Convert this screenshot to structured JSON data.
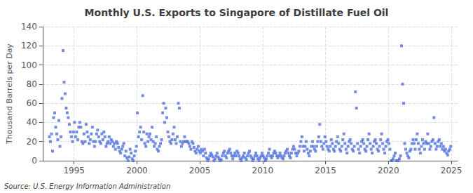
{
  "chart_data": {
    "type": "scatter",
    "title": "Monthly U.S. Exports to Singapore of Distillate Fuel Oil",
    "ylabel": "Thousand Barrels per Day",
    "annotation": "Source: U.S. Energy Information Administration",
    "marker": "square",
    "grid": true,
    "xlim": [
      1992.5,
      2025.5
    ],
    "xticks": [
      1995,
      2000,
      2005,
      2010,
      2015,
      2020,
      2025
    ],
    "ylim": [
      0,
      140
    ],
    "yticks": [
      0,
      20,
      40,
      60,
      80,
      100,
      120,
      140
    ],
    "x": [
      1993.0416666666667,
      1993.125,
      1993.2083333333333,
      1993.2916666666667,
      1993.375,
      1993.4583333333333,
      1993.5416666666667,
      1993.625,
      1993.7083333333333,
      1993.7916666666667,
      1993.875,
      1993.9583333333333,
      1994.0416666666667,
      1994.125,
      1994.2083333333333,
      1994.2916666666667,
      1994.375,
      1994.4583333333333,
      1994.5416666666667,
      1994.625,
      1994.7083333333333,
      1994.7916666666667,
      1994.875,
      1994.9583333333333,
      1995.0416666666667,
      1995.125,
      1995.2083333333333,
      1995.2916666666667,
      1995.375,
      1995.4583333333333,
      1995.5416666666667,
      1995.625,
      1995.7083333333333,
      1995.7916666666667,
      1995.875,
      1995.9583333333333,
      1996.0416666666667,
      1996.125,
      1996.2083333333333,
      1996.2916666666667,
      1996.375,
      1996.4583333333333,
      1996.5416666666667,
      1996.625,
      1996.7083333333333,
      1996.7916666666667,
      1996.875,
      1996.9583333333333,
      1997.0416666666667,
      1997.125,
      1997.2083333333333,
      1997.2916666666667,
      1997.375,
      1997.4583333333333,
      1997.5416666666667,
      1997.625,
      1997.7083333333333,
      1997.7916666666667,
      1997.875,
      1997.9583333333333,
      1998.0416666666667,
      1998.125,
      1998.2083333333333,
      1998.2916666666667,
      1998.375,
      1998.4583333333333,
      1998.5416666666667,
      1998.625,
      1998.7083333333333,
      1998.7916666666667,
      1998.875,
      1998.9583333333333,
      1999.0416666666667,
      1999.125,
      1999.2083333333333,
      1999.2916666666667,
      1999.375,
      1999.4583333333333,
      1999.5416666666667,
      1999.625,
      1999.7083333333333,
      1999.7916666666667,
      1999.875,
      1999.9583333333333,
      2000.0416666666667,
      2000.125,
      2000.2083333333333,
      2000.2916666666667,
      2000.375,
      2000.4583333333333,
      2000.5416666666667,
      2000.625,
      2000.7083333333333,
      2000.7916666666667,
      2000.875,
      2000.9583333333333,
      2001.0416666666667,
      2001.125,
      2001.2083333333333,
      2001.2916666666667,
      2001.375,
      2001.4583333333333,
      2001.5416666666667,
      2001.625,
      2001.7083333333333,
      2001.7916666666667,
      2001.875,
      2001.9583333333333,
      2002.0416666666667,
      2002.125,
      2002.2083333333333,
      2002.2916666666667,
      2002.375,
      2002.4583333333333,
      2002.5416666666667,
      2002.625,
      2002.7083333333333,
      2002.7916666666667,
      2002.875,
      2002.9583333333333,
      2003.0416666666667,
      2003.125,
      2003.2083333333333,
      2003.2916666666667,
      2003.375,
      2003.4583333333333,
      2003.5416666666667,
      2003.625,
      2003.7083333333333,
      2003.7916666666667,
      2003.875,
      2003.9583333333333,
      2004.0416666666667,
      2004.125,
      2004.2083333333333,
      2004.2916666666667,
      2004.375,
      2004.4583333333333,
      2004.5416666666667,
      2004.625,
      2004.7083333333333,
      2004.7916666666667,
      2004.875,
      2004.9583333333333,
      2005.0416666666667,
      2005.125,
      2005.2083333333333,
      2005.2916666666667,
      2005.375,
      2005.4583333333333,
      2005.5416666666667,
      2005.625,
      2005.7083333333333,
      2005.7916666666667,
      2005.875,
      2005.9583333333333,
      2006.0416666666667,
      2006.125,
      2006.2083333333333,
      2006.2916666666667,
      2006.375,
      2006.4583333333333,
      2006.5416666666667,
      2006.625,
      2006.7083333333333,
      2006.7916666666667,
      2006.875,
      2006.9583333333333,
      2007.0416666666667,
      2007.125,
      2007.2083333333333,
      2007.2916666666667,
      2007.375,
      2007.4583333333333,
      2007.5416666666667,
      2007.625,
      2007.7083333333333,
      2007.7916666666667,
      2007.875,
      2007.9583333333333,
      2008.0416666666667,
      2008.125,
      2008.2083333333333,
      2008.2916666666667,
      2008.375,
      2008.4583333333333,
      2008.5416666666667,
      2008.625,
      2008.7083333333333,
      2008.7916666666667,
      2008.875,
      2008.9583333333333,
      2009.0416666666667,
      2009.125,
      2009.2083333333333,
      2009.2916666666667,
      2009.375,
      2009.4583333333333,
      2009.5416666666667,
      2009.625,
      2009.7083333333333,
      2009.7916666666667,
      2009.875,
      2009.9583333333333,
      2010.0416666666667,
      2010.125,
      2010.2083333333333,
      2010.2916666666667,
      2010.375,
      2010.4583333333333,
      2010.5416666666667,
      2010.625,
      2010.7083333333333,
      2010.7916666666667,
      2010.875,
      2010.9583333333333,
      2011.0416666666667,
      2011.125,
      2011.2083333333333,
      2011.2916666666667,
      2011.375,
      2011.4583333333333,
      2011.5416666666667,
      2011.625,
      2011.7083333333333,
      2011.7916666666667,
      2011.875,
      2011.9583333333333,
      2012.0416666666667,
      2012.125,
      2012.2083333333333,
      2012.2916666666667,
      2012.375,
      2012.4583333333333,
      2012.5416666666667,
      2012.625,
      2012.7083333333333,
      2012.7916666666667,
      2012.875,
      2012.9583333333333,
      2013.0416666666667,
      2013.125,
      2013.2083333333333,
      2013.2916666666667,
      2013.375,
      2013.4583333333333,
      2013.5416666666667,
      2013.625,
      2013.7083333333333,
      2013.7916666666667,
      2013.875,
      2013.9583333333333,
      2014.0416666666667,
      2014.125,
      2014.2083333333333,
      2014.2916666666667,
      2014.375,
      2014.4583333333333,
      2014.5416666666667,
      2014.625,
      2014.7083333333333,
      2014.7916666666667,
      2014.875,
      2014.9583333333333,
      2015.0416666666667,
      2015.125,
      2015.2083333333333,
      2015.2916666666667,
      2015.375,
      2015.4583333333333,
      2015.5416666666667,
      2015.625,
      2015.7083333333333,
      2015.7916666666667,
      2015.875,
      2015.9583333333333,
      2016.0416666666667,
      2016.125,
      2016.2083333333333,
      2016.2916666666667,
      2016.375,
      2016.4583333333333,
      2016.5416666666667,
      2016.625,
      2016.7083333333333,
      2016.7916666666667,
      2016.875,
      2016.9583333333333,
      2017.0416666666667,
      2017.125,
      2017.2083333333333,
      2017.2916666666667,
      2017.375,
      2017.4583333333333,
      2017.5416666666667,
      2017.625,
      2017.7083333333333,
      2017.7916666666667,
      2017.875,
      2017.9583333333333,
      2018.0416666666667,
      2018.125,
      2018.2083333333333,
      2018.2916666666667,
      2018.375,
      2018.4583333333333,
      2018.5416666666667,
      2018.625,
      2018.7083333333333,
      2018.7916666666667,
      2018.875,
      2018.9583333333333,
      2019.0416666666667,
      2019.125,
      2019.2083333333333,
      2019.2916666666667,
      2019.375,
      2019.4583333333333,
      2019.5416666666667,
      2019.625,
      2019.7083333333333,
      2019.7916666666667,
      2019.875,
      2019.9583333333333,
      2020.0416666666667,
      2020.125,
      2020.2083333333333,
      2020.2916666666667,
      2020.375,
      2020.4583333333333,
      2020.5416666666667,
      2020.625,
      2020.7083333333333,
      2020.7916666666667,
      2020.875,
      2020.9583333333333,
      2021.0416666666667,
      2021.125,
      2021.2083333333333,
      2021.2916666666667,
      2021.375,
      2021.4583333333333,
      2021.5416666666667,
      2021.625,
      2021.7083333333333,
      2021.7916666666667,
      2021.875,
      2021.9583333333333,
      2022.0416666666667,
      2022.125,
      2022.2083333333333,
      2022.2916666666667,
      2022.375,
      2022.4583333333333,
      2022.5416666666667,
      2022.625,
      2022.7083333333333,
      2022.7916666666667,
      2022.875,
      2022.9583333333333,
      2023.0416666666667,
      2023.125,
      2023.2083333333333,
      2023.2916666666667,
      2023.375,
      2023.4583333333333,
      2023.5416666666667,
      2023.625,
      2023.7083333333333,
      2023.7916666666667,
      2023.875,
      2023.9583333333333,
      2024.0416666666667,
      2024.125,
      2024.2083333333333,
      2024.2916666666667,
      2024.375,
      2024.4583333333333,
      2024.5416666666667,
      2024.625,
      2024.7083333333333,
      2024.7916666666667,
      2024.875,
      2024.9583333333333
    ],
    "values": [
      25,
      20,
      28,
      10,
      45,
      50,
      35,
      28,
      22,
      42,
      15,
      25,
      65,
      115,
      82,
      70,
      55,
      50,
      45,
      38,
      30,
      25,
      20,
      30,
      40,
      25,
      30,
      22,
      35,
      40,
      35,
      20,
      18,
      28,
      20,
      38,
      30,
      25,
      18,
      22,
      28,
      35,
      20,
      15,
      20,
      28,
      32,
      25,
      20,
      18,
      28,
      22,
      30,
      25,
      15,
      18,
      20,
      25,
      18,
      22,
      20,
      15,
      18,
      12,
      20,
      18,
      14,
      10,
      8,
      12,
      15,
      18,
      5,
      10,
      3,
      0,
      4,
      12,
      8,
      2,
      0,
      5,
      10,
      15,
      50,
      25,
      30,
      35,
      22,
      68,
      30,
      18,
      15,
      28,
      20,
      25,
      28,
      22,
      35,
      20,
      15,
      18,
      25,
      12,
      10,
      15,
      18,
      22,
      50,
      60,
      40,
      55,
      45,
      30,
      25,
      20,
      18,
      22,
      28,
      35,
      22,
      18,
      25,
      60,
      55,
      20,
      15,
      18,
      20,
      25,
      20,
      20,
      20,
      18,
      15,
      12,
      20,
      18,
      14,
      10,
      8,
      12,
      15,
      10,
      8,
      12,
      10,
      5,
      12,
      8,
      3,
      0,
      2,
      5,
      8,
      6,
      4,
      0,
      2,
      5,
      8,
      4,
      2,
      0,
      1,
      5,
      8,
      10,
      5,
      3,
      8,
      10,
      12,
      8,
      5,
      2,
      5,
      8,
      5,
      10,
      8,
      5,
      2,
      0,
      3,
      5,
      8,
      3,
      1,
      5,
      8,
      10,
      5,
      3,
      0,
      2,
      5,
      8,
      5,
      2,
      0,
      3,
      5,
      8,
      5,
      3,
      0,
      2,
      5,
      8,
      12,
      5,
      3,
      5,
      8,
      10,
      8,
      5,
      3,
      5,
      8,
      5,
      3,
      2,
      5,
      8,
      10,
      12,
      8,
      5,
      3,
      8,
      12,
      15,
      12,
      8,
      5,
      8,
      10,
      15,
      20,
      25,
      15,
      10,
      15,
      20,
      12,
      8,
      5,
      10,
      15,
      20,
      15,
      12,
      10,
      15,
      20,
      25,
      38,
      20,
      15,
      12,
      18,
      25,
      20,
      15,
      12,
      10,
      15,
      22,
      18,
      12,
      10,
      15,
      20,
      25,
      18,
      12,
      10,
      15,
      22,
      28,
      18,
      12,
      8,
      15,
      20,
      22,
      18,
      12,
      10,
      15,
      72,
      55,
      18,
      12,
      8,
      15,
      20,
      22,
      18,
      12,
      10,
      15,
      22,
      28,
      18,
      12,
      8,
      15,
      20,
      22,
      18,
      12,
      10,
      15,
      22,
      28,
      18,
      12,
      8,
      15,
      20,
      22,
      18,
      12,
      0,
      0,
      2,
      5,
      8,
      0,
      0,
      0,
      2,
      5,
      120,
      80,
      60,
      18,
      12,
      8,
      5,
      3,
      10,
      12,
      18,
      22,
      18,
      12,
      22,
      28,
      18,
      12,
      8,
      15,
      22,
      18,
      12,
      20,
      18,
      28,
      18,
      12,
      15,
      20,
      22,
      45,
      18,
      12,
      15,
      20,
      22,
      15,
      18,
      12,
      15,
      10,
      12,
      8,
      6,
      10,
      12,
      15
    ]
  }
}
